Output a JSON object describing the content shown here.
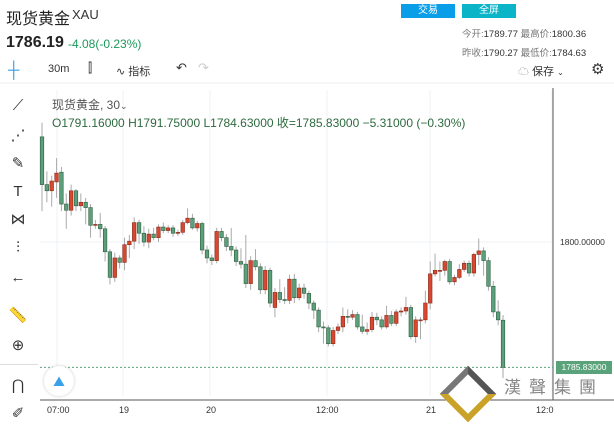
{
  "header": {
    "title": "现货黄金",
    "symbol": "XAU",
    "price": "1786.19",
    "change": "-4.08(-0.23%)",
    "trade_button": "交易",
    "fullscreen_button": "全屏",
    "stats": {
      "open_label": "今开:",
      "open": "1789.77",
      "high_label": "最高价:",
      "high": "1800.36",
      "prev_close_label": "昨收:",
      "prev_close": "1790.27",
      "low_label": "最低价:",
      "low": "1784.63"
    }
  },
  "toolbar": {
    "interval": "30m",
    "indicators": "指标",
    "save": "保存"
  },
  "legend": {
    "title": "现货黄金, 30",
    "ohlc": "O1791.16000  H1791.75000  L1784.63000  收=1785.83000  −5.31000 (−0.30%)"
  },
  "watermark": "漢聲集團",
  "colors": {
    "up": "#d8472f",
    "down": "#5d9f7b",
    "accent": "#0a9ee8"
  },
  "chart_data": {
    "type": "candlestick",
    "x_ticks": [
      "07:00",
      "19",
      "20",
      "12:00",
      "21",
      "12:0"
    ],
    "y_ticks": [
      "1800.00000"
    ],
    "last_price_label": "1785.83000",
    "ylim": [
      1782.7,
      1817.2
    ],
    "candles_ohlc": [
      [
        1811.9,
        1813.5,
        1803.5,
        1806.5
      ],
      [
        1806.5,
        1808,
        1804.5,
        1805.8
      ],
      [
        1805.8,
        1807.5,
        1804,
        1806.9
      ],
      [
        1806.8,
        1809.5,
        1805,
        1807.8
      ],
      [
        1807.9,
        1808.5,
        1803.5,
        1804.3
      ],
      [
        1804.3,
        1805.5,
        1801.5,
        1803.6
      ],
      [
        1803.6,
        1806.5,
        1803,
        1805.8
      ],
      [
        1805.8,
        1806,
        1803.5,
        1804.1
      ],
      [
        1804.1,
        1805.5,
        1803.5,
        1804.5
      ],
      [
        1804.5,
        1805,
        1802,
        1803.9
      ],
      [
        1803.9,
        1804.3,
        1800.5,
        1801.9
      ],
      [
        1801.9,
        1802.5,
        1801.5,
        1802.0
      ],
      [
        1802.0,
        1803.3,
        1800.5,
        1801.5
      ],
      [
        1801.5,
        1801.8,
        1797.8,
        1798.9
      ],
      [
        1798.9,
        1799.2,
        1795.2,
        1796.0
      ],
      [
        1796.0,
        1798.8,
        1795.5,
        1798.2
      ],
      [
        1798.2,
        1798.5,
        1797,
        1797.7
      ],
      [
        1797.7,
        1800.5,
        1796.8,
        1799.7
      ],
      [
        1799.7,
        1800.8,
        1798.2,
        1800.1
      ],
      [
        1800.1,
        1802.8,
        1799.2,
        1802.2
      ],
      [
        1802.2,
        1802.5,
        1799.8,
        1801.0
      ],
      [
        1801.0,
        1801.8,
        1799.5,
        1800.0
      ],
      [
        1800.0,
        1801.5,
        1799.3,
        1800.9
      ],
      [
        1800.9,
        1801.6,
        1800.2,
        1800.5
      ],
      [
        1800.5,
        1802,
        1800,
        1801.7
      ],
      [
        1801.7,
        1802.2,
        1801,
        1801.3
      ],
      [
        1801.3,
        1801.9,
        1801,
        1801.6
      ],
      [
        1801.6,
        1801.9,
        1800.6,
        1801.0
      ],
      [
        1801.0,
        1801.4,
        1800.7,
        1801.1
      ],
      [
        1801.1,
        1802.5,
        1800.8,
        1802.2
      ],
      [
        1802.2,
        1803.8,
        1802,
        1802.7
      ],
      [
        1802.7,
        1803.2,
        1801.4,
        1801.6
      ],
      [
        1801.6,
        1802.4,
        1801.2,
        1802.1
      ],
      [
        1802.1,
        1802.3,
        1798.6,
        1799.1
      ],
      [
        1799.1,
        1799.6,
        1797.6,
        1798.2
      ],
      [
        1798.2,
        1798.6,
        1797.4,
        1797.9
      ],
      [
        1797.9,
        1801.6,
        1797.6,
        1801.2
      ],
      [
        1801.2,
        1801.6,
        1800.1,
        1800.5
      ],
      [
        1800.5,
        1800.9,
        1799,
        1799.5
      ],
      [
        1799.5,
        1801.6,
        1798.4,
        1799.1
      ],
      [
        1799.1,
        1799.5,
        1797.3,
        1797.8
      ],
      [
        1797.8,
        1799.3,
        1797,
        1797.5
      ],
      [
        1797.5,
        1800.8,
        1794.8,
        1795.3
      ],
      [
        1795.3,
        1798.4,
        1794.6,
        1797.9
      ],
      [
        1797.9,
        1799.2,
        1796.8,
        1797.2
      ],
      [
        1797.2,
        1797.6,
        1794.1,
        1794.6
      ],
      [
        1794.6,
        1797.3,
        1794.1,
        1796.8
      ],
      [
        1796.8,
        1797.1,
        1792.6,
        1793.1
      ],
      [
        1792.6,
        1794.8,
        1791.5,
        1794.3
      ],
      [
        1794.3,
        1795.8,
        1793.1,
        1793.5
      ],
      [
        1793.5,
        1794.9,
        1793,
        1793.4
      ],
      [
        1793.4,
        1796.3,
        1793,
        1795.8
      ],
      [
        1795.8,
        1796.4,
        1793.1,
        1793.7
      ],
      [
        1793.7,
        1795.3,
        1793.4,
        1794.8
      ],
      [
        1794.8,
        1795.3,
        1793.6,
        1794.2
      ],
      [
        1794.2,
        1794.5,
        1792.4,
        1793.1
      ],
      [
        1793.1,
        1793.4,
        1791.3,
        1792.3
      ],
      [
        1792.3,
        1792.6,
        1789.8,
        1790.4
      ],
      [
        1790.4,
        1791,
        1788.5,
        1790.3
      ],
      [
        1790.3,
        1790.6,
        1788.2,
        1788.5
      ],
      [
        1788.5,
        1790.4,
        1788.2,
        1790.0
      ],
      [
        1790.0,
        1790.8,
        1789.6,
        1790.4
      ],
      [
        1790.4,
        1792.6,
        1789.8,
        1791.6
      ],
      [
        1791.6,
        1792.4,
        1790.8,
        1791.5
      ],
      [
        1791.5,
        1792.3,
        1791.2,
        1791.8
      ],
      [
        1791.8,
        1792.1,
        1790.1,
        1790.4
      ],
      [
        1790.4,
        1791.8,
        1789.6,
        1789.9
      ],
      [
        1789.9,
        1790.9,
        1789.5,
        1790.1
      ],
      [
        1790.1,
        1792.1,
        1789.8,
        1791.5
      ],
      [
        1791.5,
        1792,
        1790.6,
        1791.2
      ],
      [
        1791.2,
        1791.6,
        1790.1,
        1790.4
      ],
      [
        1790.4,
        1792.8,
        1790.2,
        1791.7
      ],
      [
        1791.7,
        1792.2,
        1790.5,
        1790.8
      ],
      [
        1790.8,
        1792.4,
        1790.5,
        1792.1
      ],
      [
        1792.1,
        1792.6,
        1791.6,
        1792.2
      ],
      [
        1792.2,
        1793.8,
        1791.8,
        1792.6
      ],
      [
        1792.6,
        1792.9,
        1789,
        1789.3
      ],
      [
        1789.3,
        1791.6,
        1788.6,
        1791.2
      ],
      [
        1791.2,
        1791.5,
        1789,
        1791.2
      ],
      [
        1791.2,
        1794.5,
        1790.8,
        1793.1
      ],
      [
        1793.1,
        1797.8,
        1792.4,
        1796.4
      ],
      [
        1796.4,
        1798.7,
        1796.1,
        1796.8
      ],
      [
        1796.8,
        1797.8,
        1795.6,
        1796.8
      ],
      [
        1796.8,
        1798,
        1796.2,
        1797.8
      ],
      [
        1797.8,
        1798.1,
        1795.2,
        1795.5
      ],
      [
        1795.5,
        1796.3,
        1795.1,
        1796.0
      ],
      [
        1796.0,
        1797.5,
        1795.8,
        1796.9
      ],
      [
        1796.9,
        1797.9,
        1796.6,
        1797.6
      ],
      [
        1797.6,
        1797.9,
        1796.1,
        1796.5
      ],
      [
        1796.5,
        1798.8,
        1796.1,
        1798.6
      ],
      [
        1798.6,
        1800.4,
        1797.4,
        1799.0
      ],
      [
        1799.0,
        1799.4,
        1796.2,
        1797.9
      ],
      [
        1797.9,
        1798.3,
        1794.5,
        1795.0
      ],
      [
        1795.0,
        1795.6,
        1791.5,
        1792.1
      ],
      [
        1792.1,
        1793.4,
        1790.6,
        1791.2
      ],
      [
        1791.16,
        1791.75,
        1784.63,
        1785.83
      ]
    ]
  }
}
